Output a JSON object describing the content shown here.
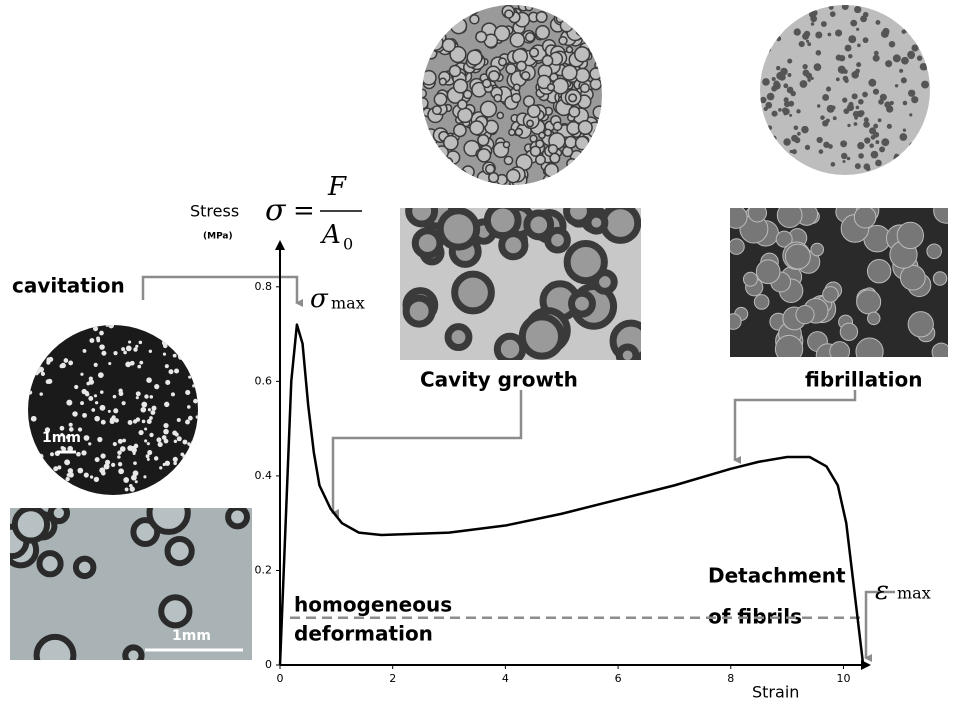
{
  "chart_data": {
    "type": "line",
    "x_label": "Strain",
    "y_label": "Stress",
    "y_unit": "(MPa)",
    "formula": {
      "lhs": "σ",
      "eq": "=",
      "num": "F",
      "den": "A",
      "sub": "0"
    },
    "peak_label": {
      "sym": "σ",
      "sub": "max"
    },
    "end_label": {
      "sym": "ε",
      "sub": "max"
    },
    "annotations": {
      "cavitation": "cavitation",
      "scale_circle": "1mm",
      "scale_rect": "1mm",
      "growth": "Cavity growth",
      "fibrillation": "fibrillation",
      "detachment_1": "Detachment",
      "detachment_2": "of fibrils",
      "homogeneous_1": "homogeneous",
      "homogeneous_2": "deformation"
    },
    "x": [
      0,
      0.1,
      0.2,
      0.3,
      0.4,
      0.5,
      0.6,
      0.7,
      0.9,
      1.1,
      1.4,
      1.8,
      2.5,
      3,
      4,
      5,
      6,
      7,
      8,
      8.5,
      9,
      9.4,
      9.7,
      9.9,
      10.05,
      10.15,
      10.25,
      10.35
    ],
    "values": [
      0,
      0.3,
      0.6,
      0.72,
      0.68,
      0.55,
      0.45,
      0.38,
      0.33,
      0.3,
      0.28,
      0.275,
      0.278,
      0.28,
      0.295,
      0.32,
      0.35,
      0.38,
      0.415,
      0.43,
      0.44,
      0.44,
      0.42,
      0.38,
      0.3,
      0.2,
      0.1,
      0
    ],
    "color": "#000000",
    "threshold": 0.1,
    "threshold_color": "#8c8c8c",
    "xlim": [
      0,
      10.4
    ],
    "ylim": [
      0,
      0.88
    ],
    "xticks": [
      0,
      2,
      4,
      6,
      8,
      10
    ],
    "yticks": [
      0,
      0.2,
      0.4,
      0.6,
      0.8
    ]
  }
}
